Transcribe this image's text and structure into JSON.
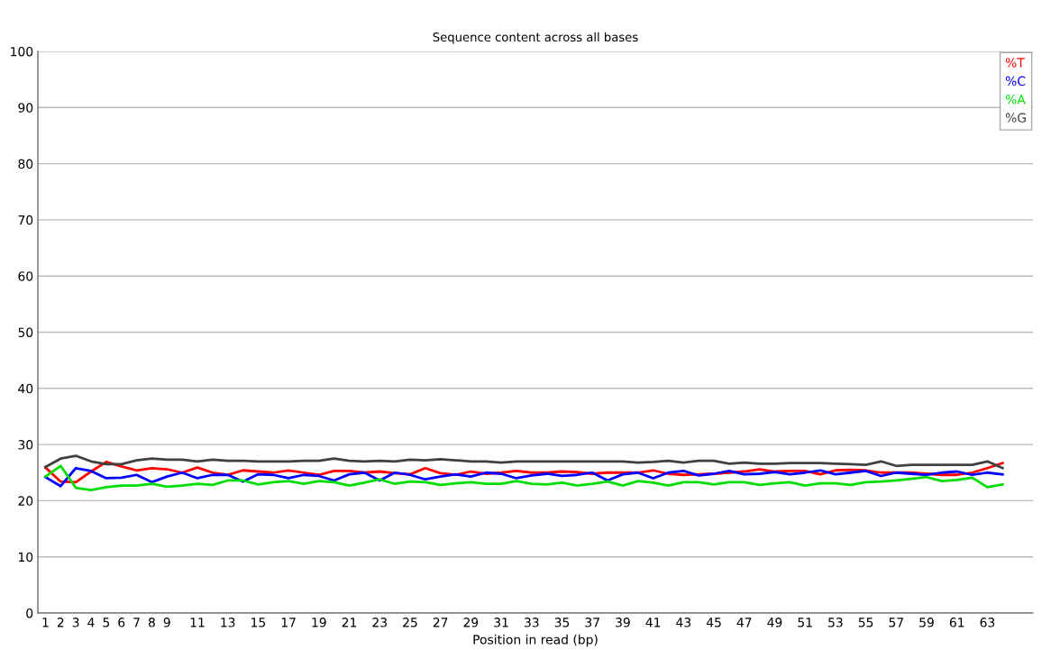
{
  "chart_data": {
    "type": "line",
    "title": "Sequence content across all bases",
    "xlabel": "Position in read (bp)",
    "categories": [
      "1",
      "2",
      "3",
      "4",
      "5",
      "6",
      "7",
      "8",
      "9",
      null,
      "11",
      null,
      "13",
      null,
      "15",
      null,
      "17",
      null,
      "19",
      null,
      "21",
      null,
      "23",
      null,
      "25",
      null,
      "27",
      null,
      "29",
      null,
      "31",
      null,
      "33",
      null,
      "35",
      null,
      "37",
      null,
      "39",
      null,
      "41",
      null,
      "43",
      null,
      "45",
      null,
      "47",
      null,
      "49",
      null,
      "51",
      null,
      "53",
      null,
      "55",
      null,
      "57",
      null,
      "59",
      null,
      "61",
      null,
      "63",
      null
    ],
    "series": [
      {
        "name": "%T",
        "color": "#ff0000",
        "values": [
          25.9,
          23.4,
          23.3,
          25.2,
          26.9,
          26.1,
          25.4,
          25.8,
          25.6,
          25,
          25.9,
          25,
          24.6,
          25.4,
          25.2,
          25,
          25.4,
          25,
          24.6,
          25.3,
          25.3,
          25,
          25.2,
          24.9,
          24.7,
          25.8,
          24.9,
          24.6,
          25.2,
          24.8,
          25,
          25.3,
          25,
          25,
          25.2,
          25.1,
          24.8,
          25,
          25,
          25,
          25.4,
          24.8,
          24.6,
          24.7,
          24.8,
          25,
          25.2,
          25.6,
          25.2,
          25.3,
          25.3,
          24.7,
          25.4,
          25.5,
          25.4,
          25,
          25,
          25,
          24.8,
          24.6,
          24.6,
          25,
          25.8,
          26.7
        ]
      },
      {
        "name": "%C",
        "color": "#0000ff",
        "values": [
          24.2,
          22.6,
          25.8,
          25.3,
          24,
          24.1,
          24.6,
          23.3,
          24.3,
          25,
          24,
          24.6,
          24.6,
          23.4,
          24.7,
          24.6,
          24,
          24.6,
          24.4,
          23.6,
          24.7,
          25,
          23.6,
          25,
          24.6,
          23.8,
          24.3,
          24.7,
          24.3,
          25,
          24.8,
          24,
          24.5,
          24.8,
          24.4,
          24.6,
          25,
          23.6,
          24.7,
          25,
          24,
          25,
          25.3,
          24.5,
          24.8,
          25.3,
          24.7,
          24.8,
          25.1,
          24.7,
          25,
          25.4,
          24.7,
          25,
          25.3,
          24.4,
          25,
          24.8,
          24.6,
          25,
          25.2,
          24.6,
          25,
          24.7
        ]
      },
      {
        "name": "%A",
        "color": "#00dd00",
        "values": [
          24.3,
          26.2,
          22.3,
          21.9,
          22.4,
          22.7,
          22.7,
          23,
          22.5,
          22.7,
          23,
          22.8,
          23.6,
          23.6,
          22.9,
          23.3,
          23.5,
          23,
          23.5,
          23.3,
          22.7,
          23.2,
          23.8,
          23,
          23.4,
          23.3,
          22.8,
          23.1,
          23.3,
          23,
          23,
          23.5,
          23,
          22.9,
          23.2,
          22.7,
          23,
          23.4,
          22.7,
          23.5,
          23.2,
          22.7,
          23.3,
          23.3,
          22.9,
          23.3,
          23.3,
          22.8,
          23.1,
          23.3,
          22.7,
          23.1,
          23.1,
          22.8,
          23.3,
          23.4,
          23.6,
          23.9,
          24.2,
          23.5,
          23.7,
          24.1,
          22.4,
          22.9
        ]
      },
      {
        "name": "%G",
        "color": "#404040",
        "values": [
          26,
          27.5,
          28,
          27,
          26.5,
          26.5,
          27.2,
          27.5,
          27.3,
          27.3,
          27,
          27.3,
          27.1,
          27.1,
          27,
          27,
          27,
          27.1,
          27.1,
          27.5,
          27.1,
          27,
          27.1,
          27,
          27.3,
          27.2,
          27.4,
          27.2,
          27,
          27,
          26.8,
          27,
          27,
          27,
          27,
          27,
          27,
          27,
          27,
          26.8,
          26.9,
          27.1,
          26.8,
          27.1,
          27.1,
          26.6,
          26.8,
          26.6,
          26.6,
          26.7,
          26.7,
          26.7,
          26.6,
          26.5,
          26.4,
          27,
          26.2,
          26.4,
          26.4,
          26.4,
          26.4,
          26.4,
          27,
          25.8
        ]
      }
    ],
    "ylim": [
      0,
      100
    ],
    "yticks": [
      0,
      10,
      20,
      30,
      40,
      50,
      60,
      70,
      80,
      90,
      100
    ],
    "grid": "y",
    "legend": "top right",
    "marker": "none",
    "line_style": "solid"
  }
}
